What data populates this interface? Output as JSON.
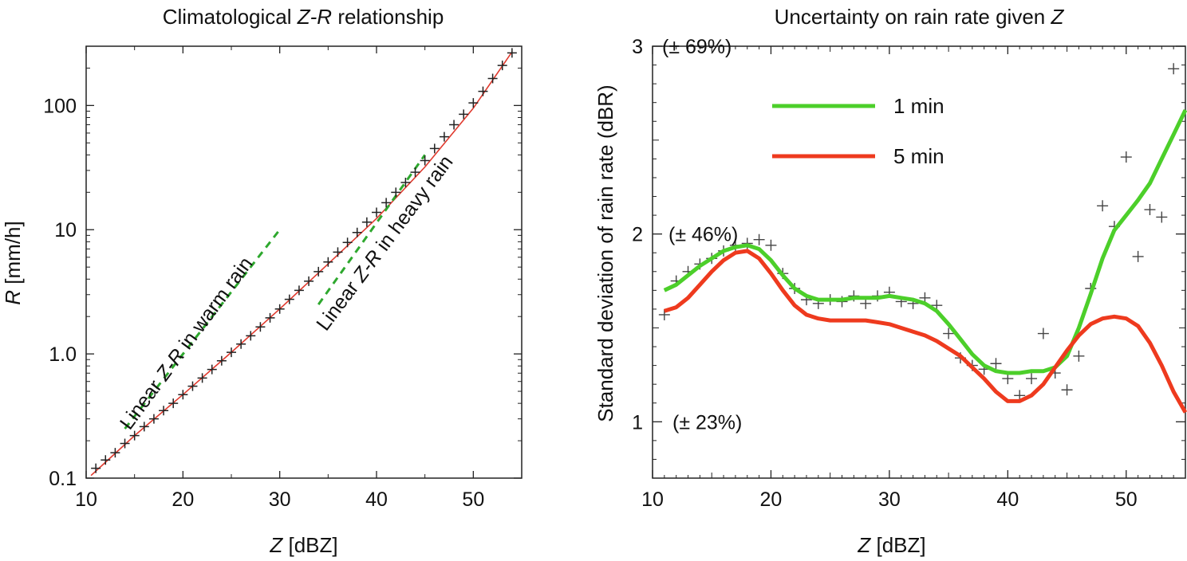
{
  "chart_data": [
    {
      "type": "scatter",
      "title": "Climatological Z-R relationship",
      "title_parts": {
        "pre": "Climatological ",
        "italic": "Z-R",
        "post": " relationship"
      },
      "xlabel": "Z [dBZ]",
      "xlabel_parts": {
        "italic": "Z",
        "rest": " [dBZ]"
      },
      "ylabel": "R [mm/h]",
      "ylabel_parts": {
        "italic": "R",
        "rest": " [mm/h]"
      },
      "xlim": [
        10,
        55
      ],
      "ylim": [
        0.1,
        300
      ],
      "y_scale": "log",
      "xticks": [
        10,
        20,
        30,
        40,
        50
      ],
      "xtick_labels": [
        "10",
        "20",
        "30",
        "40",
        "50"
      ],
      "yticks": [
        0.1,
        1,
        10,
        100
      ],
      "ytick_labels": [
        "0.1",
        "1.0",
        "10",
        "100"
      ],
      "grid": false,
      "series": [
        {
          "kind": "markers",
          "marker": "plus",
          "color": "#222222",
          "x": [
            11,
            12,
            13,
            14,
            15,
            16,
            17,
            18,
            19,
            20,
            21,
            22,
            23,
            24,
            25,
            26,
            27,
            28,
            29,
            30,
            31,
            32,
            33,
            34,
            35,
            36,
            37,
            38,
            39,
            40,
            41,
            42,
            43,
            44,
            45,
            46,
            47,
            48,
            49,
            50,
            51,
            52,
            53,
            54
          ],
          "y": [
            0.12,
            0.14,
            0.16,
            0.19,
            0.22,
            0.26,
            0.3,
            0.35,
            0.4,
            0.47,
            0.55,
            0.64,
            0.75,
            0.88,
            1.03,
            1.2,
            1.4,
            1.65,
            1.95,
            2.3,
            2.75,
            3.25,
            3.85,
            4.6,
            5.5,
            6.6,
            7.9,
            9.5,
            11.5,
            13.8,
            16.5,
            20,
            24,
            29,
            36,
            45,
            56,
            70,
            85,
            105,
            130,
            165,
            210,
            265
          ]
        },
        {
          "kind": "line",
          "color": "#e03a2e",
          "x": [
            10.5,
            15,
            20,
            25,
            30,
            35,
            40,
            45,
            50,
            54
          ],
          "y": [
            0.105,
            0.22,
            0.47,
            1.03,
            2.3,
            5.3,
            12.3,
            32,
            95,
            270
          ]
        },
        {
          "kind": "dashed",
          "color": "#2ea82e",
          "x": [
            14,
            30
          ],
          "y": [
            0.25,
            10
          ]
        },
        {
          "kind": "dashed",
          "color": "#2ea82e",
          "x": [
            34,
            45
          ],
          "y": [
            2.5,
            40
          ]
        }
      ],
      "annotations": [
        {
          "pre": "Linear ",
          "italic": "Z-R",
          "post": " in warm rain",
          "x": 14.5,
          "y": 0.24,
          "angle": -53.6
        },
        {
          "pre": "Linear ",
          "italic": "Z-R",
          "post": " in heavy rain",
          "x": 34.8,
          "y": 1.5,
          "angle": -53.2
        }
      ]
    },
    {
      "type": "line",
      "title": "Uncertainty on rain rate given Z",
      "title_parts": {
        "pre": "Uncertainty on rain rate given ",
        "italic": "Z",
        "post": ""
      },
      "xlabel": "Z [dBZ]",
      "xlabel_parts": {
        "italic": "Z",
        "rest": " [dBZ]"
      },
      "ylabel": "Standard deviation of rain rate (dBR)",
      "xlim": [
        10,
        55
      ],
      "ylim": [
        0.7,
        3
      ],
      "xticks": [
        10,
        20,
        30,
        40,
        50
      ],
      "xtick_labels": [
        "10",
        "20",
        "30",
        "40",
        "50"
      ],
      "yticks": [
        1,
        2,
        3
      ],
      "ytick_labels": [
        "1",
        "2",
        "3"
      ],
      "grid": false,
      "y_annotations": [
        {
          "text": "(± 69%)",
          "y": 3
        },
        {
          "text": "(± 46%)",
          "y": 2
        },
        {
          "text": "(± 23%)",
          "y": 1
        }
      ],
      "legend": {
        "location": "upper-left"
      },
      "series": [
        {
          "name": "1 min",
          "kind": "line",
          "color": "#4ccf2a",
          "x": [
            11,
            12,
            13,
            14,
            15,
            16,
            17,
            18,
            19,
            20,
            21,
            22,
            23,
            24,
            25,
            26,
            27,
            28,
            29,
            30,
            31,
            32,
            33,
            34,
            35,
            36,
            37,
            38,
            39,
            40,
            41,
            42,
            43,
            44,
            45,
            46,
            47,
            48,
            49,
            50,
            51,
            52,
            53,
            54,
            55
          ],
          "y": [
            1.7,
            1.73,
            1.78,
            1.83,
            1.87,
            1.91,
            1.93,
            1.94,
            1.92,
            1.86,
            1.78,
            1.71,
            1.67,
            1.65,
            1.65,
            1.65,
            1.66,
            1.66,
            1.66,
            1.67,
            1.66,
            1.65,
            1.63,
            1.59,
            1.52,
            1.44,
            1.36,
            1.3,
            1.27,
            1.26,
            1.26,
            1.27,
            1.27,
            1.29,
            1.35,
            1.5,
            1.68,
            1.87,
            2.02,
            2.1,
            2.18,
            2.27,
            2.4,
            2.53,
            2.66
          ]
        },
        {
          "name": "5 min",
          "kind": "line",
          "color": "#ee3a1e",
          "x": [
            11,
            12,
            13,
            14,
            15,
            16,
            17,
            18,
            19,
            20,
            21,
            22,
            23,
            24,
            25,
            26,
            27,
            28,
            29,
            30,
            31,
            32,
            33,
            34,
            35,
            36,
            37,
            38,
            39,
            40,
            41,
            42,
            43,
            44,
            45,
            46,
            47,
            48,
            49,
            50,
            51,
            52,
            53,
            54,
            55
          ],
          "y": [
            1.59,
            1.61,
            1.66,
            1.73,
            1.8,
            1.86,
            1.9,
            1.91,
            1.87,
            1.79,
            1.7,
            1.62,
            1.57,
            1.55,
            1.54,
            1.54,
            1.54,
            1.54,
            1.53,
            1.52,
            1.5,
            1.48,
            1.46,
            1.43,
            1.39,
            1.35,
            1.29,
            1.23,
            1.16,
            1.11,
            1.11,
            1.14,
            1.2,
            1.29,
            1.38,
            1.46,
            1.52,
            1.55,
            1.56,
            1.55,
            1.51,
            1.42,
            1.3,
            1.16,
            1.05
          ]
        },
        {
          "kind": "markers",
          "marker": "plus",
          "color": "#444444",
          "x": [
            11,
            12,
            13,
            14,
            15,
            16,
            17,
            18,
            19,
            20,
            21,
            22,
            23,
            24,
            25,
            26,
            27,
            28,
            29,
            30,
            31,
            32,
            33,
            34,
            35,
            36,
            37,
            38,
            39,
            40,
            41,
            42,
            43,
            44,
            45,
            46,
            47,
            48,
            49,
            50,
            51,
            52,
            53,
            54
          ],
          "y": [
            1.57,
            1.75,
            1.8,
            1.84,
            1.87,
            1.91,
            1.94,
            1.95,
            1.97,
            1.94,
            1.79,
            1.71,
            1.65,
            1.63,
            1.65,
            1.64,
            1.67,
            1.63,
            1.67,
            1.69,
            1.64,
            1.63,
            1.66,
            1.62,
            1.47,
            1.34,
            1.3,
            1.28,
            1.31,
            1.23,
            1.14,
            1.23,
            1.47,
            1.26,
            1.17,
            1.35,
            1.71,
            2.15,
            2.04,
            2.41,
            1.88,
            2.13,
            2.09,
            2.88
          ]
        }
      ]
    }
  ]
}
